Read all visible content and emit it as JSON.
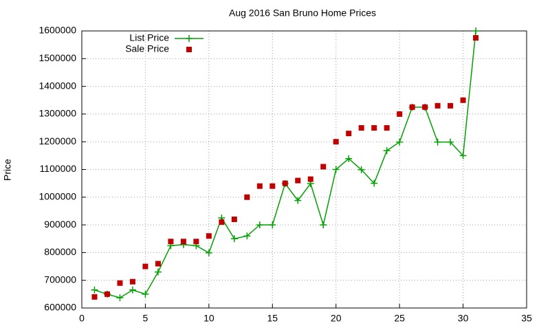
{
  "chart_data": {
    "type": "line",
    "title": "Aug 2016 San Bruno Home Prices",
    "y_label": "Price",
    "x": [
      1,
      2,
      3,
      4,
      5,
      6,
      7,
      8,
      9,
      10,
      11,
      12,
      13,
      14,
      15,
      16,
      17,
      18,
      19,
      20,
      21,
      22,
      23,
      24,
      25,
      26,
      27,
      28,
      29,
      30,
      31
    ],
    "series": [
      {
        "name": "List Price",
        "color": "#00a000",
        "marker": "plus",
        "line": true,
        "values": [
          665000,
          650000,
          637000,
          665000,
          650000,
          730000,
          825000,
          829000,
          825000,
          799000,
          925000,
          850000,
          860000,
          900000,
          900000,
          1049000,
          988000,
          1049000,
          900000,
          1100000,
          1139000,
          1099000,
          1050000,
          1168000,
          1199000,
          1325000,
          1325000,
          1199000,
          1199000,
          1150000,
          1600000
        ]
      },
      {
        "name": "Sale Price",
        "color": "#c00000",
        "marker": "square",
        "line": false,
        "values": [
          640000,
          650000,
          690000,
          695000,
          750000,
          760000,
          840000,
          840000,
          840000,
          860000,
          910000,
          920000,
          1000000,
          1040000,
          1040000,
          1050000,
          1060000,
          1065000,
          1110000,
          1200000,
          1230000,
          1250000,
          1250000,
          1250000,
          1300000,
          1325000,
          1325000,
          1330000,
          1330000,
          1350000,
          1575000
        ]
      }
    ],
    "xlim": [
      0,
      35
    ],
    "xticks": [
      0,
      5,
      10,
      15,
      20,
      25,
      30,
      35
    ],
    "ylim": [
      600000,
      1600000
    ],
    "yticks": [
      600000,
      700000,
      800000,
      900000,
      1000000,
      1100000,
      1200000,
      1300000,
      1400000,
      1500000,
      1600000
    ],
    "grid": true,
    "legend": "top-left"
  }
}
